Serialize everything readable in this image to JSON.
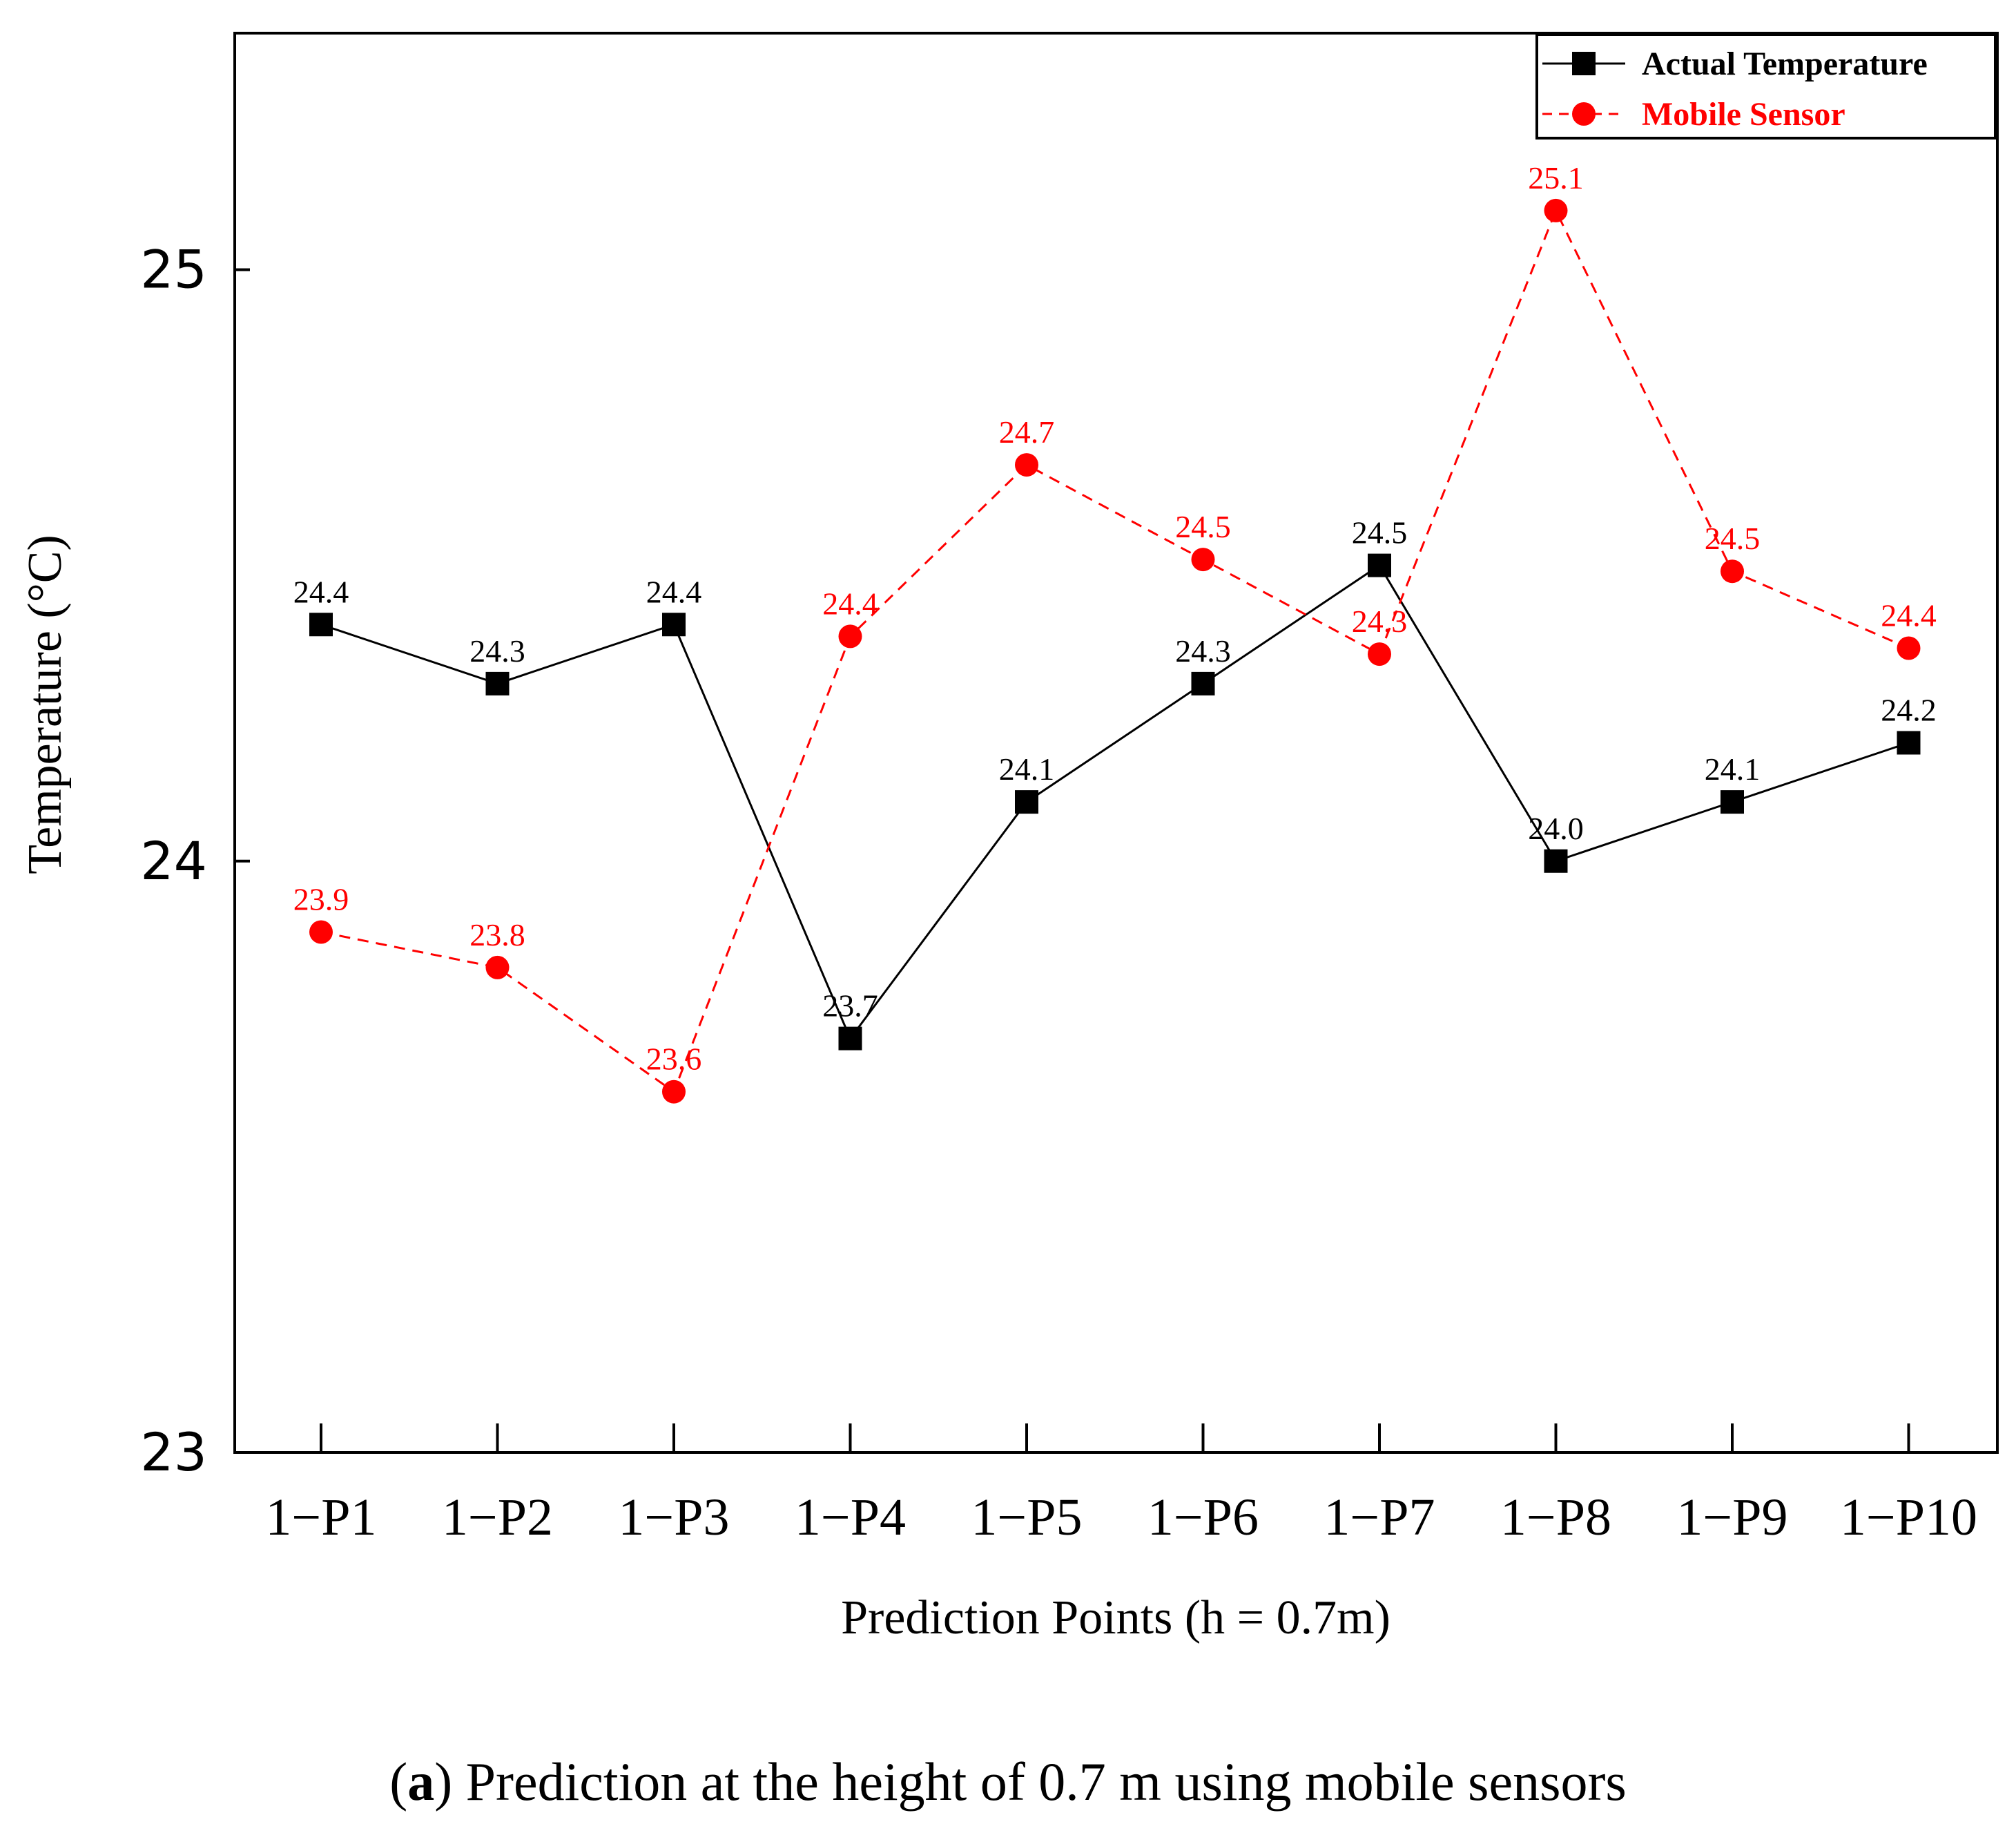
{
  "chart_data": {
    "type": "line",
    "title": "",
    "xlabel": "Prediction Points (h = 0.7m)",
    "ylabel": "Temperature (°C)",
    "ylim": [
      23,
      25.4
    ],
    "yticks": [
      23,
      24,
      25
    ],
    "categories": [
      "1−P1",
      "1−P2",
      "1−P3",
      "1−P4",
      "1−P5",
      "1−P6",
      "1−P7",
      "1−P8",
      "1−P9",
      "1−P10"
    ],
    "legend_position": "top-right",
    "grid": false,
    "series": [
      {
        "name": "Actual Temperature",
        "color": "#000000",
        "marker": "square",
        "line_style": "solid",
        "values": [
          24.4,
          24.3,
          24.4,
          23.7,
          24.1,
          24.3,
          24.5,
          24.0,
          24.1,
          24.2
        ],
        "labels": [
          "24.4",
          "24.3",
          "24.4",
          "23.7",
          "24.1",
          "24.3",
          "24.5",
          "24.0",
          "24.1",
          "24.2"
        ]
      },
      {
        "name": "Mobile Sensor",
        "color": "#ff0000",
        "marker": "circle",
        "line_style": "dashed",
        "values": [
          23.88,
          23.82,
          23.61,
          24.38,
          24.67,
          24.51,
          24.35,
          25.1,
          24.49,
          24.36
        ],
        "labels": [
          "23.9",
          "23.8",
          "23.6",
          "24.4",
          "24.7",
          "24.5",
          "24.3",
          "25.1",
          "24.5",
          "24.4"
        ]
      }
    ]
  },
  "caption": {
    "prefix": "(",
    "letter": "a",
    "text": ") Prediction at the height of 0.7 m using mobile sensors"
  }
}
